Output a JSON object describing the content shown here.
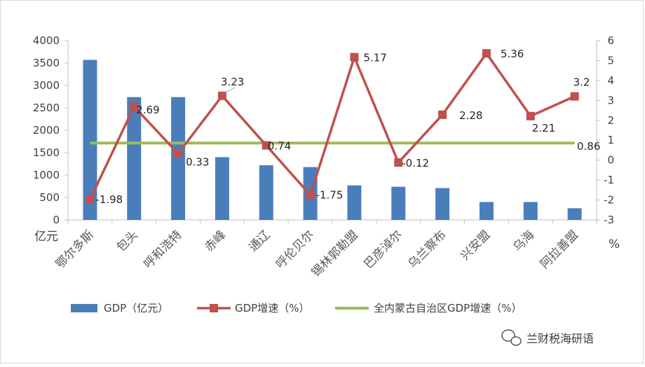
{
  "chart_data": {
    "type": "bar",
    "categories": [
      "鄂尔多斯",
      "包头",
      "呼和浩特",
      "赤峰",
      "通辽",
      "呼伦贝尔",
      "锡林郭勒盟",
      "巴彦淖尔",
      "乌兰察布",
      "兴安盟",
      "乌海",
      "阿拉善盟"
    ],
    "series": [
      {
        "name": "GDP（亿元）",
        "type": "bar",
        "axis": "left",
        "color": "#4a7ebb",
        "values": [
          3570,
          2740,
          2740,
          1400,
          1220,
          1180,
          770,
          740,
          710,
          400,
          400,
          260
        ]
      },
      {
        "name": "GDP增速（%）",
        "type": "line",
        "axis": "right",
        "color": "#c0504d",
        "values": [
          -1.98,
          2.69,
          0.33,
          3.23,
          0.74,
          -1.75,
          5.17,
          -0.12,
          2.28,
          5.36,
          2.21,
          3.2
        ],
        "data_labels": [
          "-1.98",
          "2.69",
          "0.33",
          "3.23",
          "0.74",
          "-1.75",
          "5.17",
          "-0.12",
          "2.28",
          "5.36",
          "2.21",
          "3.2"
        ]
      },
      {
        "name": "全内蒙古自治区GDP增速（%）",
        "type": "line",
        "axis": "right",
        "color": "#9bbb59",
        "values": [
          0.86,
          0.86,
          0.86,
          0.86,
          0.86,
          0.86,
          0.86,
          0.86,
          0.86,
          0.86,
          0.86,
          0.86
        ],
        "data_labels": [
          "0.86"
        ]
      }
    ],
    "left_axis": {
      "label": "亿元",
      "ylim": [
        0,
        4000
      ],
      "ticks": [
        "0",
        "500",
        "1000",
        "1500",
        "2000",
        "2500",
        "3000",
        "3500",
        "4000"
      ]
    },
    "right_axis": {
      "label": "%",
      "ylim": [
        -3,
        6
      ],
      "ticks": [
        "-3",
        "-2",
        "-1",
        "0",
        "1",
        "2",
        "3",
        "4",
        "5",
        "6"
      ]
    },
    "grid": false,
    "legend_position": "bottom"
  },
  "watermark": {
    "text": "兰财税海研语"
  }
}
